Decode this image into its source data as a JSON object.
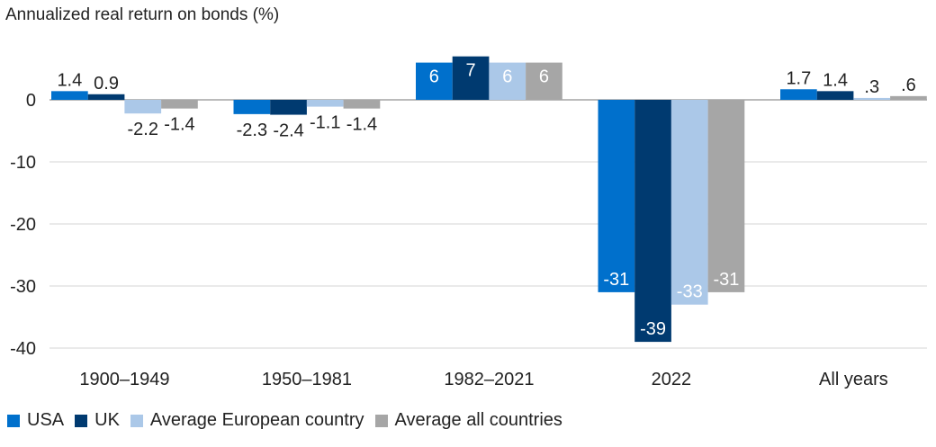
{
  "chart_data": {
    "type": "bar",
    "title": "Annualized real return on bonds (%)",
    "categories": [
      "1900–1949",
      "1950–1981",
      "1982–2021",
      "2022",
      "All years"
    ],
    "series": [
      {
        "name": "USA",
        "color": "#0070CC",
        "values": [
          1.4,
          -2.3,
          6,
          -31,
          1.7
        ],
        "labels": [
          "1.4",
          "-2.3",
          "6",
          "-31",
          "1.7"
        ]
      },
      {
        "name": "UK",
        "color": "#003A70",
        "values": [
          0.9,
          -2.4,
          7,
          -39,
          1.4
        ],
        "labels": [
          "0.9",
          "-2.4",
          "7",
          "-39",
          "1.4"
        ]
      },
      {
        "name": "Average European country",
        "color": "#ABC8E8",
        "values": [
          -2.2,
          -1.1,
          6,
          -33,
          0.3
        ],
        "labels": [
          "-2.2",
          "-1.1",
          "6",
          "-33",
          ".3"
        ]
      },
      {
        "name": "Average all countries",
        "color": "#A6A6A6",
        "values": [
          -1.4,
          -1.4,
          6,
          -31,
          0.6
        ],
        "labels": [
          "-1.4",
          "-1.4",
          "6",
          "-31",
          ".6"
        ]
      }
    ],
    "yticks": [
      0,
      -10,
      -20,
      -30,
      -40
    ],
    "ylim": [
      -40,
      7
    ],
    "grid": true,
    "legend": "bottom"
  }
}
